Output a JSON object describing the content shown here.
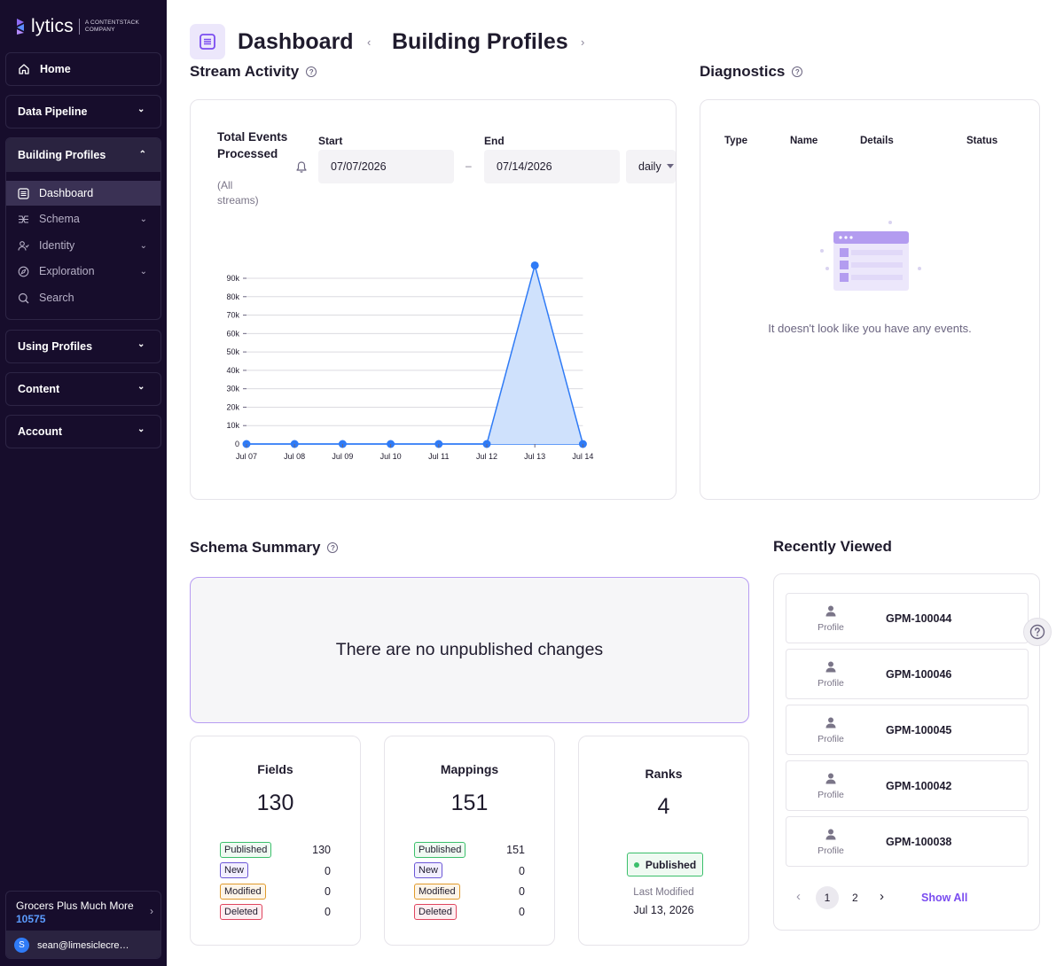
{
  "brand": {
    "name": "lytics",
    "tagline": "A CONTENTSTACK\nCOMPANY"
  },
  "sidebar": {
    "home": "Home",
    "data_pipeline": "Data Pipeline",
    "building_profiles": "Building Profiles",
    "sub_items": [
      {
        "label": "Dashboard",
        "icon": "list-icon",
        "active": true
      },
      {
        "label": "Schema",
        "icon": "schema-icon"
      },
      {
        "label": "Identity",
        "icon": "identity-icon"
      },
      {
        "label": "Exploration",
        "icon": "compass-icon"
      },
      {
        "label": "Search",
        "icon": "search-icon"
      }
    ],
    "using_profiles": "Using Profiles",
    "content": "Content",
    "account": "Account",
    "account_name": "Grocers Plus Much More",
    "account_id": "10575",
    "user_initial": "S",
    "user_email": "sean@limesiclecrea..."
  },
  "header": {
    "title": "Dashboard",
    "breadcrumb": "Building Profiles"
  },
  "stream_activity": {
    "title": "Stream Activity",
    "metric_label": "Total Events Processed",
    "metric_sub": "(All streams)",
    "start_label": "Start",
    "start_value": "07/07/2026",
    "end_label": "End",
    "end_value": "07/14/2026",
    "separator": "–",
    "interval": "daily"
  },
  "chart_data": {
    "type": "area",
    "x": [
      "Jul 07",
      "Jul 08",
      "Jul 09",
      "Jul 10",
      "Jul 11",
      "Jul 12",
      "Jul 13",
      "Jul 14"
    ],
    "values": [
      0,
      0,
      0,
      0,
      0,
      0,
      97000,
      0
    ],
    "ylim": [
      0,
      90000
    ],
    "yticks": [
      "0",
      "10k",
      "20k",
      "30k",
      "40k",
      "50k",
      "60k",
      "70k",
      "80k",
      "90k"
    ],
    "grid": true,
    "color": "#2f7bf6",
    "fill": "#cfe1fc"
  },
  "diagnostics": {
    "title": "Diagnostics",
    "columns": [
      "Type",
      "Name",
      "Details",
      "Status"
    ],
    "empty_message": "It doesn't look like you have any events."
  },
  "schema_summary": {
    "title": "Schema Summary",
    "unpublished_message": "There are no unpublished changes",
    "fields": {
      "title": "Fields",
      "total": "130",
      "rows": [
        {
          "label": "Published",
          "value": "130"
        },
        {
          "label": "New",
          "value": "0"
        },
        {
          "label": "Modified",
          "value": "0"
        },
        {
          "label": "Deleted",
          "value": "0"
        }
      ]
    },
    "mappings": {
      "title": "Mappings",
      "total": "151",
      "rows": [
        {
          "label": "Published",
          "value": "151"
        },
        {
          "label": "New",
          "value": "0"
        },
        {
          "label": "Modified",
          "value": "0"
        },
        {
          "label": "Deleted",
          "value": "0"
        }
      ]
    },
    "ranks": {
      "title": "Ranks",
      "total": "4",
      "status": "Published",
      "last_modified_label": "Last Modified",
      "last_modified_date": "Jul 13, 2026"
    }
  },
  "recently_viewed": {
    "title": "Recently Viewed",
    "items": [
      {
        "type": "Profile",
        "id": "GPM-100044"
      },
      {
        "type": "Profile",
        "id": "GPM-100046"
      },
      {
        "type": "Profile",
        "id": "GPM-100045"
      },
      {
        "type": "Profile",
        "id": "GPM-100042"
      },
      {
        "type": "Profile",
        "id": "GPM-100038"
      }
    ],
    "pages": [
      "1",
      "2"
    ],
    "current_page": "1",
    "show_all": "Show All"
  }
}
